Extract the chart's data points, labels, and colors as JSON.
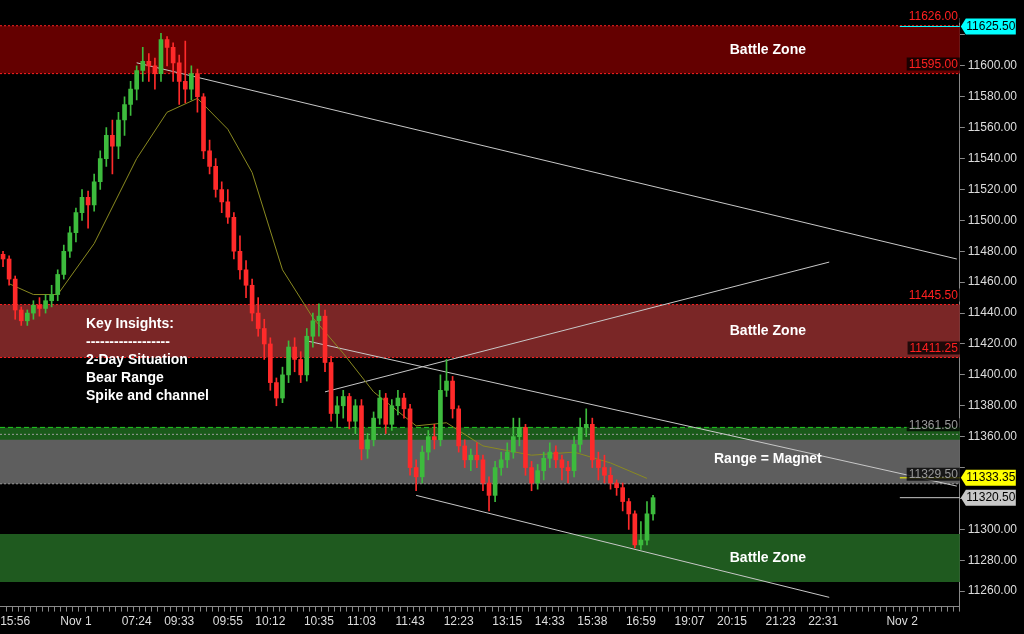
{
  "chart_data": {
    "type": "candlestick",
    "categories": [
      null,
      null,
      "15:56",
      null,
      null,
      null,
      null,
      null,
      null,
      null,
      null,
      null,
      "Nov 1",
      null,
      null,
      null,
      null,
      null,
      null,
      null,
      null,
      null,
      "07:24",
      null,
      null,
      null,
      null,
      null,
      null,
      "09:33",
      null,
      null,
      null,
      null,
      null,
      null,
      null,
      "09:55",
      null,
      null,
      null,
      null,
      null,
      null,
      "10:12",
      null,
      null,
      null,
      null,
      null,
      null,
      null,
      "10:35",
      null,
      null,
      null,
      null,
      null,
      null,
      "11:03",
      null,
      null,
      null,
      null,
      null,
      null,
      null,
      "11:43",
      null,
      null,
      null,
      null,
      null,
      null,
      null,
      "12:23",
      null,
      null,
      null,
      null,
      null,
      null,
      null,
      "13:15",
      null,
      null,
      null,
      null,
      null,
      null,
      "14:33",
      null,
      null,
      null,
      null,
      null,
      null,
      "15:38",
      null,
      null,
      null,
      null,
      null,
      null,
      null,
      "16:59",
      null,
      null,
      null,
      null,
      null,
      null,
      null,
      "19:07",
      null,
      null,
      null,
      null,
      null,
      null,
      "20:15",
      null,
      null,
      null,
      null,
      null,
      null,
      null,
      "21:23",
      null,
      null,
      null,
      null,
      null,
      null,
      "22:31",
      null,
      null,
      null,
      null,
      null,
      null,
      null,
      null,
      null,
      null,
      null,
      null,
      "Nov 2",
      null,
      null,
      null,
      null,
      null,
      null,
      null,
      null,
      null
    ],
    "ohlc": [
      [
        11478,
        11480,
        11470,
        11475
      ],
      [
        11475,
        11477,
        11458,
        11462
      ],
      [
        11462,
        11464,
        11436,
        11442
      ],
      [
        11442,
        11444,
        11432,
        11435
      ],
      [
        11435,
        11442,
        11432,
        11440
      ],
      [
        11440,
        11448,
        11436,
        11445
      ],
      [
        11445,
        11450,
        11438,
        11443
      ],
      [
        11443,
        11452,
        11440,
        11448
      ],
      [
        11448,
        11458,
        11444,
        11452
      ],
      [
        11452,
        11468,
        11448,
        11465
      ],
      [
        11465,
        11484,
        11462,
        11480
      ],
      [
        11480,
        11496,
        11476,
        11492
      ],
      [
        11492,
        11508,
        11486,
        11505
      ],
      [
        11505,
        11520,
        11500,
        11515
      ],
      [
        11515,
        11519,
        11495,
        11510
      ],
      [
        11510,
        11530,
        11506,
        11525
      ],
      [
        11525,
        11545,
        11520,
        11540
      ],
      [
        11540,
        11560,
        11535,
        11555
      ],
      [
        11555,
        11565,
        11530,
        11548
      ],
      [
        11548,
        11570,
        11540,
        11565
      ],
      [
        11565,
        11580,
        11555,
        11575
      ],
      [
        11575,
        11590,
        11568,
        11585
      ],
      [
        11585,
        11600,
        11578,
        11597
      ],
      [
        11597,
        11612,
        11590,
        11603
      ],
      [
        11603,
        11608,
        11590,
        11600
      ],
      [
        11600,
        11605,
        11585,
        11595
      ],
      [
        11595,
        11621,
        11590,
        11617
      ],
      [
        11617,
        11619,
        11600,
        11612
      ],
      [
        11612,
        11615,
        11590,
        11602
      ],
      [
        11602,
        11607,
        11575,
        11590
      ],
      [
        11590,
        11616,
        11576,
        11585
      ],
      [
        11585,
        11600,
        11578,
        11595
      ],
      [
        11595,
        11598,
        11570,
        11580
      ],
      [
        11580,
        11582,
        11540,
        11545
      ],
      [
        11545,
        11552,
        11530,
        11535
      ],
      [
        11535,
        11540,
        11515,
        11520
      ],
      [
        11520,
        11525,
        11505,
        11512
      ],
      [
        11512,
        11520,
        11498,
        11502
      ],
      [
        11502,
        11505,
        11475,
        11480
      ],
      [
        11480,
        11490,
        11462,
        11468
      ],
      [
        11468,
        11474,
        11450,
        11458
      ],
      [
        11458,
        11462,
        11435,
        11440
      ],
      [
        11440,
        11450,
        11425,
        11430
      ],
      [
        11430,
        11436,
        11410,
        11420
      ],
      [
        11420,
        11424,
        11390,
        11395
      ],
      [
        11395,
        11398,
        11380,
        11385
      ],
      [
        11385,
        11405,
        11382,
        11400
      ],
      [
        11400,
        11422,
        11395,
        11418
      ],
      [
        11418,
        11424,
        11402,
        11410
      ],
      [
        11410,
        11415,
        11395,
        11400
      ],
      [
        11400,
        11430,
        11396,
        11425
      ],
      [
        11425,
        11440,
        11418,
        11435
      ],
      [
        11435,
        11446,
        11425,
        11438
      ],
      [
        11438,
        11442,
        11402,
        11408
      ],
      [
        11408,
        11412,
        11370,
        11375
      ],
      [
        11375,
        11386,
        11366,
        11380
      ],
      [
        11380,
        11390,
        11372,
        11386
      ],
      [
        11386,
        11388,
        11365,
        11370
      ],
      [
        11370,
        11384,
        11362,
        11380
      ],
      [
        11380,
        11384,
        11345,
        11352
      ],
      [
        11352,
        11362,
        11346,
        11358
      ],
      [
        11358,
        11376,
        11354,
        11372
      ],
      [
        11372,
        11390,
        11368,
        11385
      ],
      [
        11385,
        11388,
        11362,
        11368
      ],
      [
        11368,
        11384,
        11364,
        11380
      ],
      [
        11380,
        11390,
        11374,
        11385
      ],
      [
        11385,
        11388,
        11372,
        11378
      ],
      [
        11378,
        11381,
        11335,
        11340
      ],
      [
        11340,
        11345,
        11325,
        11334
      ],
      [
        11334,
        11354,
        11330,
        11350
      ],
      [
        11350,
        11364,
        11345,
        11360
      ],
      [
        11360,
        11368,
        11352,
        11358
      ],
      [
        11358,
        11400,
        11354,
        11390
      ],
      [
        11390,
        11410,
        11386,
        11396
      ],
      [
        11396,
        11399,
        11372,
        11378
      ],
      [
        11378,
        11380,
        11350,
        11354
      ],
      [
        11354,
        11358,
        11340,
        11345
      ],
      [
        11345,
        11352,
        11338,
        11348
      ],
      [
        11348,
        11356,
        11340,
        11345
      ],
      [
        11345,
        11348,
        11325,
        11330
      ],
      [
        11330,
        11334,
        11312,
        11322
      ],
      [
        11322,
        11344,
        11318,
        11340
      ],
      [
        11340,
        11350,
        11335,
        11345
      ],
      [
        11345,
        11356,
        11340,
        11350
      ],
      [
        11350,
        11372,
        11346,
        11360
      ],
      [
        11360,
        11372,
        11354,
        11366
      ],
      [
        11366,
        11368,
        11335,
        11340
      ],
      [
        11340,
        11344,
        11325,
        11330
      ],
      [
        11330,
        11342,
        11326,
        11338
      ],
      [
        11338,
        11350,
        11332,
        11346
      ],
      [
        11346,
        11356,
        11340,
        11350
      ],
      [
        11350,
        11354,
        11340,
        11345
      ],
      [
        11345,
        11348,
        11332,
        11340
      ],
      [
        11340,
        11344,
        11330,
        11338
      ],
      [
        11338,
        11360,
        11334,
        11355
      ],
      [
        11355,
        11372,
        11350,
        11366
      ],
      [
        11366,
        11378,
        11360,
        11368
      ],
      [
        11368,
        11372,
        11340,
        11345
      ],
      [
        11345,
        11350,
        11332,
        11340
      ],
      [
        11340,
        11348,
        11330,
        11335
      ],
      [
        11335,
        11340,
        11326,
        11330
      ],
      [
        11330,
        11332,
        11322,
        11327
      ],
      [
        11327,
        11330,
        11312,
        11318
      ],
      [
        11318,
        11320,
        11300,
        11310
      ],
      [
        11310,
        11312,
        11288,
        11290
      ],
      [
        11290,
        11305,
        11287,
        11293
      ],
      [
        11293,
        11318,
        11290,
        11310
      ],
      [
        11310,
        11322,
        11306,
        11320.5
      ],
      null,
      null,
      null,
      null,
      null,
      null,
      null,
      null,
      null,
      null,
      null,
      null,
      null,
      null,
      null,
      null,
      null,
      null,
      null,
      null,
      null,
      null,
      null,
      null,
      null,
      null,
      null,
      null,
      null,
      null,
      null,
      null,
      null,
      null,
      null,
      null,
      null,
      null,
      null,
      null,
      null,
      null,
      null,
      null,
      null,
      null,
      null,
      null,
      null,
      null
    ],
    "colors": [
      "#ff2a2a",
      "#ff2a2a",
      "#ff2a2a",
      "#ff2a2a",
      "#3dbb3d",
      "#3dbb3d",
      "#ff2a2a",
      "#3dbb3d",
      "#3dbb3d",
      "#3dbb3d",
      "#3dbb3d",
      "#3dbb3d",
      "#3dbb3d",
      "#3dbb3d",
      "#ff2a2a",
      "#3dbb3d",
      "#3dbb3d",
      "#3dbb3d",
      "#ff2a2a",
      "#3dbb3d",
      "#3dbb3d",
      "#3dbb3d",
      "#3dbb3d",
      "#3dbb3d",
      "#ff2a2a",
      "#ff2a2a",
      "#3dbb3d",
      "#ff2a2a",
      "#ff2a2a",
      "#ff2a2a",
      "#ff2a2a",
      "#3dbb3d",
      "#ff2a2a",
      "#ff2a2a",
      "#ff2a2a",
      "#ff2a2a",
      "#ff2a2a",
      "#ff2a2a",
      "#ff2a2a",
      "#ff2a2a",
      "#ff2a2a",
      "#ff2a2a",
      "#ff2a2a",
      "#ff2a2a",
      "#ff2a2a",
      "#ff2a2a",
      "#3dbb3d",
      "#3dbb3d",
      "#ff2a2a",
      "#ff2a2a",
      "#3dbb3d",
      "#3dbb3d",
      "#3dbb3d",
      "#ff2a2a",
      "#ff2a2a",
      "#3dbb3d",
      "#3dbb3d",
      "#ff2a2a",
      "#3dbb3d",
      "#ff2a2a",
      "#3dbb3d",
      "#3dbb3d",
      "#3dbb3d",
      "#ff2a2a",
      "#3dbb3d",
      "#3dbb3d",
      "#ff2a2a",
      "#ff2a2a",
      "#ff2a2a",
      "#3dbb3d",
      "#3dbb3d",
      "#ff2a2a",
      "#3dbb3d",
      "#3dbb3d",
      "#ff2a2a",
      "#ff2a2a",
      "#ff2a2a",
      "#3dbb3d",
      "#ff2a2a",
      "#ff2a2a",
      "#ff2a2a",
      "#3dbb3d",
      "#3dbb3d",
      "#3dbb3d",
      "#3dbb3d",
      "#3dbb3d",
      "#ff2a2a",
      "#ff2a2a",
      "#3dbb3d",
      "#3dbb3d",
      "#3dbb3d",
      "#ff2a2a",
      "#ff2a2a",
      "#ff2a2a",
      "#3dbb3d",
      "#3dbb3d",
      "#3dbb3d",
      "#ff2a2a",
      "#ff2a2a",
      "#ff2a2a",
      "#ff2a2a",
      "#ff2a2a",
      "#ff2a2a",
      "#ff2a2a",
      "#ff2a2a",
      "#3dbb3d",
      "#3dbb3d",
      "#3dbb3d",
      null,
      null,
      null,
      null,
      null,
      null,
      null,
      null,
      null,
      null,
      null,
      null,
      null,
      null,
      null,
      null,
      null,
      null,
      null,
      null,
      null,
      null,
      null,
      null,
      null,
      null,
      null,
      null,
      null,
      null,
      null,
      null,
      null,
      null,
      null,
      null,
      null,
      null,
      null,
      null,
      null,
      null,
      null,
      null,
      null,
      null,
      null,
      null,
      null,
      null
    ],
    "series": [
      {
        "type": "line",
        "color": "#8a8a20",
        "values": [
          null,
          11459,
          null,
          null,
          null,
          11452,
          null,
          null,
          null,
          11452,
          null,
          null,
          null,
          null,
          null,
          11485,
          null,
          null,
          null,
          null,
          null,
          null,
          11540,
          null,
          null,
          null,
          null,
          11570,
          null,
          null,
          null,
          null,
          11579,
          null,
          null,
          null,
          null,
          11559,
          null,
          null,
          null,
          11531,
          null,
          null,
          null,
          null,
          11468,
          null,
          null,
          null,
          null,
          11437,
          null,
          null,
          null,
          null,
          11414,
          null,
          null,
          null,
          null,
          11389,
          null,
          null,
          null,
          null,
          null,
          null,
          11367,
          null,
          null,
          null,
          null,
          11369,
          null,
          null,
          null,
          null,
          null,
          11354,
          null,
          null,
          null,
          null,
          null,
          null,
          null,
          11348,
          null,
          null,
          null,
          null,
          null,
          null,
          11350,
          null,
          null,
          null,
          null,
          null,
          11343,
          null,
          null,
          null,
          null,
          null,
          11333,
          null,
          null,
          null,
          null,
          null,
          null,
          null,
          null,
          null,
          null,
          null,
          null,
          null,
          null,
          null,
          null,
          null,
          null,
          null,
          null,
          null,
          null,
          null,
          null,
          null,
          null,
          null,
          null,
          null,
          null,
          null,
          null,
          null,
          null,
          null,
          null,
          null,
          null,
          null,
          null,
          null,
          null,
          null,
          null,
          null,
          null,
          null,
          null,
          null,
          null,
          null
        ]
      },
      {
        "type": "line",
        "color": "#c8c8c8",
        "values": [
          null,
          null,
          null,
          null,
          null,
          null,
          null,
          null,
          null,
          null,
          null,
          null,
          null,
          null,
          null,
          null,
          null,
          null,
          null,
          null,
          null,
          null,
          11602,
          null,
          null,
          null,
          null,
          null,
          null,
          null,
          null,
          null,
          null,
          null,
          null,
          null,
          null,
          null,
          null,
          null,
          null,
          null,
          null,
          null,
          null,
          null,
          null,
          null,
          null,
          null,
          null,
          null,
          null,
          null,
          null,
          null,
          null,
          null,
          null,
          null,
          null,
          null,
          null,
          null,
          null,
          null,
          null,
          null,
          null,
          null,
          null,
          null,
          null,
          null,
          null,
          null,
          null,
          null,
          null,
          null,
          null,
          null,
          null,
          null,
          null,
          null,
          null,
          null,
          null,
          null,
          null,
          null,
          null,
          null,
          null,
          null,
          null,
          null,
          null,
          null,
          null,
          null,
          null,
          null,
          null,
          null,
          null,
          null,
          null,
          null,
          null,
          null,
          null,
          null,
          null,
          null,
          null,
          null,
          null,
          null,
          null,
          null,
          null,
          null,
          null,
          null,
          null,
          null,
          null,
          null,
          null,
          null,
          null,
          null,
          null,
          null,
          null,
          null,
          null,
          null,
          null,
          null,
          null,
          null,
          null,
          null,
          null,
          null,
          null,
          null,
          null,
          null,
          null,
          null,
          null,
          null,
          null,
          11475
        ]
      },
      {
        "type": "line",
        "color": "#c8c8c8",
        "values": [
          null,
          null,
          null,
          null,
          null,
          null,
          null,
          null,
          null,
          null,
          null,
          null,
          null,
          null,
          null,
          null,
          null,
          null,
          null,
          null,
          null,
          null,
          null,
          null,
          null,
          null,
          null,
          null,
          null,
          null,
          null,
          null,
          null,
          null,
          null,
          null,
          null,
          null,
          null,
          null,
          null,
          null,
          null,
          null,
          null,
          null,
          null,
          null,
          null,
          null,
          11422,
          null,
          null,
          null,
          null,
          null,
          null,
          null,
          null,
          null,
          null,
          null,
          null,
          null,
          null,
          null,
          null,
          null,
          null,
          null,
          null,
          null,
          null,
          null,
          null,
          null,
          null,
          null,
          null,
          null,
          null,
          null,
          null,
          null,
          null,
          null,
          null,
          null,
          null,
          null,
          null,
          null,
          null,
          null,
          null,
          null,
          null,
          null,
          null,
          null,
          null,
          null,
          null,
          null,
          null,
          null,
          null,
          null,
          null,
          null,
          null,
          null,
          null,
          null,
          null,
          null,
          null,
          null,
          null,
          null,
          null,
          null,
          null,
          null,
          null,
          null,
          null,
          null,
          null,
          null,
          null,
          null,
          null,
          null,
          null,
          null,
          null,
          null,
          null,
          null,
          null,
          null,
          null,
          null,
          null,
          null,
          null,
          null,
          null,
          null,
          null,
          null,
          null,
          null,
          null,
          null,
          null,
          11328
        ]
      },
      {
        "type": "line",
        "color": "#c8c8c8",
        "values": [
          null,
          null,
          null,
          null,
          null,
          null,
          null,
          null,
          null,
          null,
          null,
          null,
          null,
          null,
          null,
          null,
          null,
          null,
          null,
          null,
          null,
          null,
          null,
          null,
          null,
          null,
          null,
          null,
          null,
          null,
          null,
          null,
          null,
          null,
          null,
          null,
          null,
          null,
          null,
          null,
          null,
          null,
          null,
          null,
          null,
          null,
          null,
          null,
          null,
          null,
          null,
          null,
          null,
          null,
          null,
          null,
          null,
          null,
          null,
          null,
          null,
          null,
          null,
          null,
          null,
          null,
          null,
          null,
          11322,
          null,
          null,
          null,
          null,
          null,
          null,
          null,
          null,
          null,
          null,
          null,
          null,
          null,
          null,
          null,
          null,
          null,
          null,
          null,
          null,
          null,
          null,
          null,
          null,
          null,
          null,
          null,
          null,
          null,
          null,
          null,
          null,
          null,
          null,
          null,
          null,
          null,
          null,
          null,
          null,
          null,
          null,
          null,
          null,
          null,
          null,
          null,
          null,
          null,
          null,
          null,
          null,
          null,
          null,
          null,
          null,
          null,
          null,
          null,
          null,
          null,
          null,
          null,
          null,
          null,
          null,
          null,
          11256,
          null,
          null,
          null,
          null,
          null,
          null,
          null,
          null,
          null,
          null,
          null,
          null,
          null,
          null,
          null,
          null,
          null,
          null,
          null,
          null,
          null
        ]
      },
      {
        "type": "line",
        "color": "#c8c8c8",
        "values": [
          null,
          null,
          null,
          null,
          null,
          null,
          null,
          null,
          null,
          null,
          null,
          null,
          null,
          null,
          null,
          null,
          null,
          null,
          null,
          null,
          null,
          null,
          null,
          null,
          null,
          null,
          null,
          null,
          null,
          null,
          null,
          null,
          null,
          null,
          null,
          null,
          null,
          null,
          null,
          null,
          null,
          null,
          null,
          null,
          null,
          null,
          null,
          null,
          null,
          null,
          null,
          null,
          null,
          11389,
          null,
          null,
          null,
          null,
          null,
          null,
          null,
          null,
          null,
          null,
          null,
          null,
          null,
          null,
          null,
          null,
          null,
          null,
          null,
          null,
          null,
          null,
          null,
          null,
          null,
          null,
          null,
          null,
          null,
          null,
          null,
          null,
          null,
          null,
          null,
          null,
          null,
          null,
          null,
          null,
          null,
          null,
          null,
          null,
          null,
          null,
          null,
          null,
          null,
          null,
          null,
          null,
          null,
          null,
          null,
          null,
          null,
          null,
          null,
          null,
          null,
          null,
          null,
          null,
          null,
          null,
          null,
          null,
          null,
          null,
          null,
          null,
          null,
          null,
          null,
          null,
          null,
          null,
          null,
          null,
          null,
          null,
          11473,
          null,
          null,
          null,
          null,
          null,
          null,
          null,
          null,
          null,
          null,
          null,
          null,
          null,
          null,
          null,
          null,
          null,
          null,
          null,
          null,
          null
        ]
      }
    ],
    "ylim": [
      11250,
      11631
    ],
    "yticks": [
      {
        "value": 11260,
        "label": "11260.00"
      },
      {
        "value": 11280,
        "label": "11280.00"
      },
      {
        "value": 11300,
        "label": "11300.00"
      },
      {
        "value": 11320,
        "label": null
      },
      {
        "value": 11340,
        "label": null
      },
      {
        "value": 11360,
        "label": "11360.00"
      },
      {
        "value": 11380,
        "label": "11380.00"
      },
      {
        "value": 11400,
        "label": "11400.00"
      },
      {
        "value": 11420,
        "label": "11420.00"
      },
      {
        "value": 11440,
        "label": "11440.00"
      },
      {
        "value": 11460,
        "label": "11460.00"
      },
      {
        "value": 11480,
        "label": "11480.00"
      },
      {
        "value": 11500,
        "label": "11500.00"
      },
      {
        "value": 11520,
        "label": "11520.00"
      },
      {
        "value": 11540,
        "label": "11540.00"
      },
      {
        "value": 11560,
        "label": "11560.00"
      },
      {
        "value": 11580,
        "label": "11580.00"
      },
      {
        "value": 11600,
        "label": "11600.00"
      },
      {
        "value": 11620,
        "label": null
      }
    ],
    "bands": [
      {
        "axis": "y",
        "from": 11595,
        "to": 11626,
        "label": "Battle Zone",
        "color": "#640000"
      },
      {
        "axis": "y",
        "from": 11411.25,
        "to": 11445.5,
        "label": "Battle Zone",
        "color": "#7a2626"
      },
      {
        "axis": "y",
        "from": 11329.5,
        "to": 11361.5,
        "label": "Range = Magnet",
        "color": "#5e5e5e"
      },
      {
        "axis": "y",
        "from": 11266,
        "to": 11297,
        "label": "Battle Zone",
        "color": "#1f5a1f"
      },
      {
        "axis": "y",
        "from": 11358,
        "to": 11366,
        "color": "#1a5a1a"
      }
    ],
    "ref_lines": [
      {
        "axis": "y",
        "value": 11626,
        "label": "11626.00",
        "color": "#ff2020",
        "line_style": "dotted"
      },
      {
        "axis": "y",
        "value": 11595,
        "label": "11595.00",
        "color": "#ff2020",
        "line_style": "dotted"
      },
      {
        "axis": "y",
        "value": 11445.5,
        "label": "11445.50",
        "color": "#ff2020",
        "line_style": "dotted"
      },
      {
        "axis": "y",
        "value": 11411.25,
        "label": "11411.25",
        "color": "#ff2020",
        "line_style": "dotted"
      },
      {
        "axis": "y",
        "value": 11361.5,
        "label": "11361.50",
        "color": "#9a9a9a",
        "line_style": "dotted"
      },
      {
        "axis": "y",
        "value": 11329.5,
        "label": "11329.50",
        "color": "#9a9a9a",
        "line_style": "dotted"
      },
      {
        "axis": "y",
        "value": 11366,
        "color": "#22cc22",
        "line_style": "dashed"
      },
      {
        "axis": "y",
        "value": 11625.5,
        "label": "11625.50",
        "color": "#00ffff"
      },
      {
        "axis": "y",
        "value": 11333.35,
        "label": "11333.35",
        "color": "#ffff00"
      },
      {
        "axis": "y",
        "value": 11320.5,
        "label": "11320.50",
        "color": "#c8c8c8"
      }
    ],
    "annotations": [
      "Key Insights:",
      "------------------",
      "2-Day Situation",
      "Bear Range",
      "Spike and channel"
    ]
  }
}
